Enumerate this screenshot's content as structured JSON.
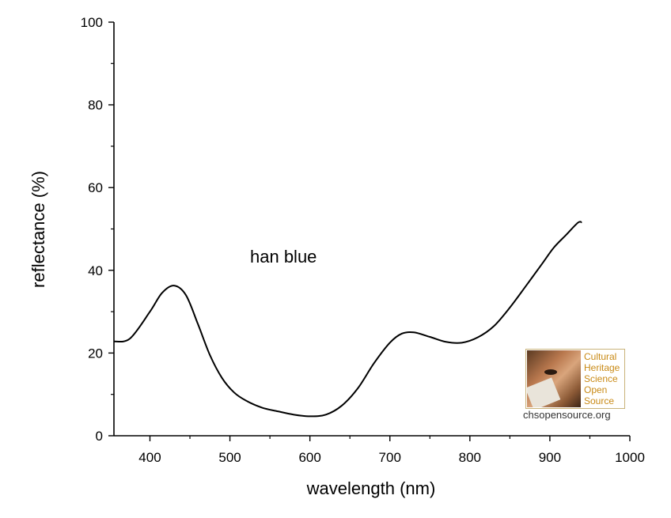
{
  "chart_data": {
    "type": "line",
    "xlabel": "wavelength (nm)",
    "ylabel": "reflectance (%)",
    "xlim": [
      355,
      1000
    ],
    "ylim": [
      0,
      100
    ],
    "x_ticks": [
      400,
      500,
      600,
      700,
      800,
      900,
      1000
    ],
    "y_ticks": [
      0,
      20,
      40,
      60,
      80,
      100
    ],
    "x_tick_labels": [
      "400",
      "500",
      "600",
      "700",
      "800",
      "900",
      "1000"
    ],
    "y_tick_labels": [
      "0",
      "20",
      "40",
      "60",
      "80",
      "100"
    ],
    "grid": false,
    "annotations": [
      {
        "text": "han blue"
      }
    ],
    "series": [
      {
        "color": "#000000",
        "x": [
          355,
          375,
          400,
          415,
          430,
          445,
          460,
          475,
          490,
          505,
          520,
          540,
          560,
          580,
          600,
          620,
          640,
          660,
          680,
          700,
          715,
          730,
          750,
          770,
          790,
          810,
          830,
          850,
          870,
          890,
          905,
          920,
          935,
          940
        ],
        "y": [
          22.8,
          23.5,
          30.0,
          34.5,
          36.3,
          34.0,
          27.0,
          19.5,
          14.0,
          10.5,
          8.5,
          6.8,
          5.9,
          5.1,
          4.7,
          5.1,
          7.3,
          11.5,
          17.5,
          22.5,
          24.7,
          25.0,
          23.9,
          22.7,
          22.5,
          23.8,
          26.5,
          31.0,
          36.2,
          41.5,
          45.5,
          48.5,
          51.5,
          51.6
        ]
      }
    ]
  },
  "logo": {
    "lines": [
      "Cultural",
      "Heritage",
      "Science",
      "Open",
      "Source"
    ],
    "url": "chsopensource.org"
  },
  "colors": {
    "axis": "#000000",
    "line": "#000000",
    "logo_text": "#c98a16",
    "logo_border": "#c9b37a"
  }
}
